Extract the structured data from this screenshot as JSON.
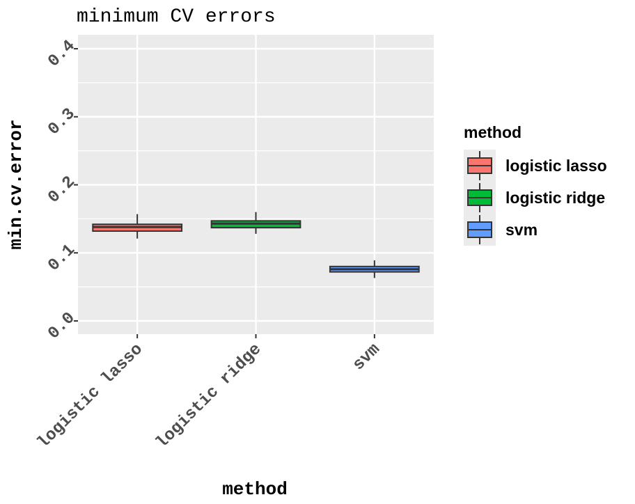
{
  "chart_data": {
    "type": "box",
    "title": "minimum CV errors",
    "xlabel": "method",
    "ylabel": "min.cv.error",
    "categories": [
      "logistic lasso",
      "logistic ridge",
      "svm"
    ],
    "yticks": [
      "0.0",
      "0.1",
      "0.2",
      "0.3",
      "0.4"
    ],
    "ylim": [
      -0.02,
      0.42
    ],
    "series": [
      {
        "name": "logistic lasso",
        "color": "#F8766D",
        "min": 0.121,
        "q1": 0.132,
        "median": 0.138,
        "q3": 0.142,
        "max": 0.157
      },
      {
        "name": "logistic ridge",
        "color": "#00BA38",
        "min": 0.128,
        "q1": 0.137,
        "median": 0.143,
        "q3": 0.147,
        "max": 0.16
      },
      {
        "name": "svm",
        "color": "#619CFF",
        "min": 0.063,
        "q1": 0.072,
        "median": 0.076,
        "q3": 0.08,
        "max": 0.089
      }
    ],
    "legend": {
      "title": "method",
      "position": "right"
    },
    "grid": true
  }
}
